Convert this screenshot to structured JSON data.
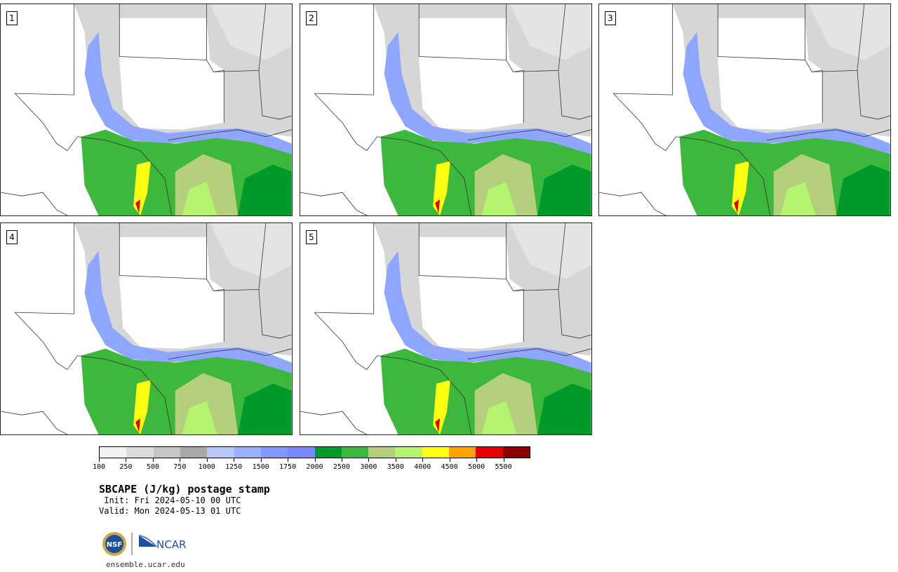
{
  "panels": [
    {
      "id": 1,
      "label": "1"
    },
    {
      "id": 2,
      "label": "2"
    },
    {
      "id": 3,
      "label": "3"
    },
    {
      "id": 4,
      "label": "4"
    },
    {
      "id": 5,
      "label": "5"
    }
  ],
  "colorbar": {
    "colors": [
      "#f2f2f2",
      "#dcdcdc",
      "#c6c6c6",
      "#a8a8a8",
      "#b8c8ff",
      "#98b0ff",
      "#8098ff",
      "#7888ff",
      "#009a2a",
      "#3db83d",
      "#b4d07c",
      "#b4f46e",
      "#ffff14",
      "#ffa300",
      "#e60000",
      "#870000"
    ],
    "tick_labels": [
      "100",
      "250",
      "500",
      "750",
      "1000",
      "1250",
      "1500",
      "1750",
      "2000",
      "2500",
      "3000",
      "3500",
      "4000",
      "4500",
      "5000",
      "5500"
    ]
  },
  "title": "SBCAPE (J/kg) postage stamp",
  "init": " Init: Fri 2024-05-10 00 UTC",
  "valid": "Valid: Mon 2024-05-13 01 UTC",
  "logos": {
    "left": "NSF",
    "right": "NCAR"
  },
  "website": "ensemble.ucar.edu"
}
